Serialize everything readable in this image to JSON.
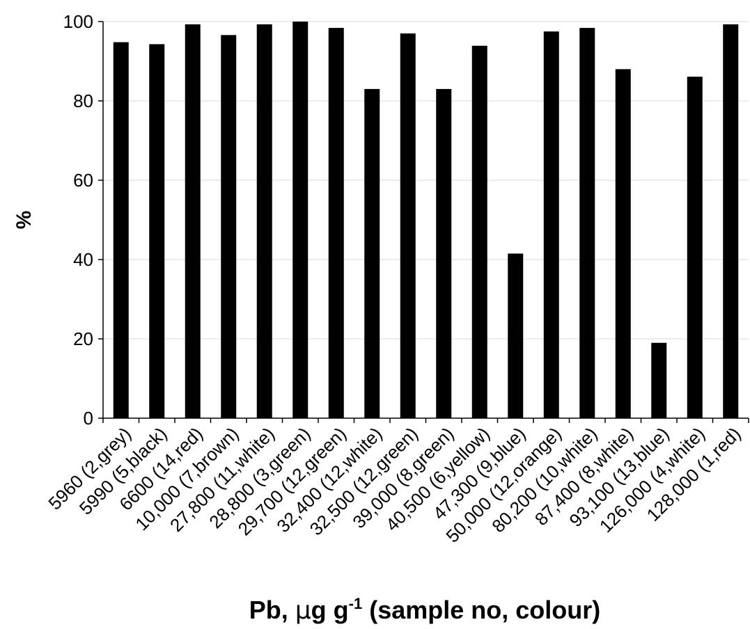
{
  "chart_data": {
    "type": "bar",
    "categories": [
      "5960 (2,grey)",
      "5990 (5,black)",
      "6600 (14,red)",
      "10,000 (7,brown)",
      "27,800 (11,white)",
      "28,800 (3,green)",
      "29,700 (12,green)",
      "32,400 (12,white)",
      "32,500 (12,green)",
      "39,000 (8,green)",
      "40,500 (6,yellow)",
      "47,300 (9,blue)",
      "50,000 (12,orange)",
      "80,200 (10,white)",
      "87,400 (8,white)",
      "93,100 (13,blue)",
      "126,000 (4,white)",
      "128,000 (1,red)"
    ],
    "values": [
      94.8,
      94.3,
      99.3,
      96.6,
      99.3,
      100,
      98.4,
      83,
      97,
      83,
      93.9,
      41.5,
      97.5,
      98.4,
      88,
      19,
      86.1,
      99.3
    ],
    "ylabel": "%",
    "xlabel_parts": {
      "pre": "Pb, ",
      "mu": "μ",
      "mid": "g g",
      "sup": "-1",
      "post": " (sample no, colour)"
    },
    "ylim": [
      0,
      100
    ],
    "yticks": [
      "0",
      "20",
      "40",
      "60",
      "80",
      "100"
    ],
    "grid": true,
    "bar_color": "#000000",
    "grid_color": "#d9d9d9"
  }
}
